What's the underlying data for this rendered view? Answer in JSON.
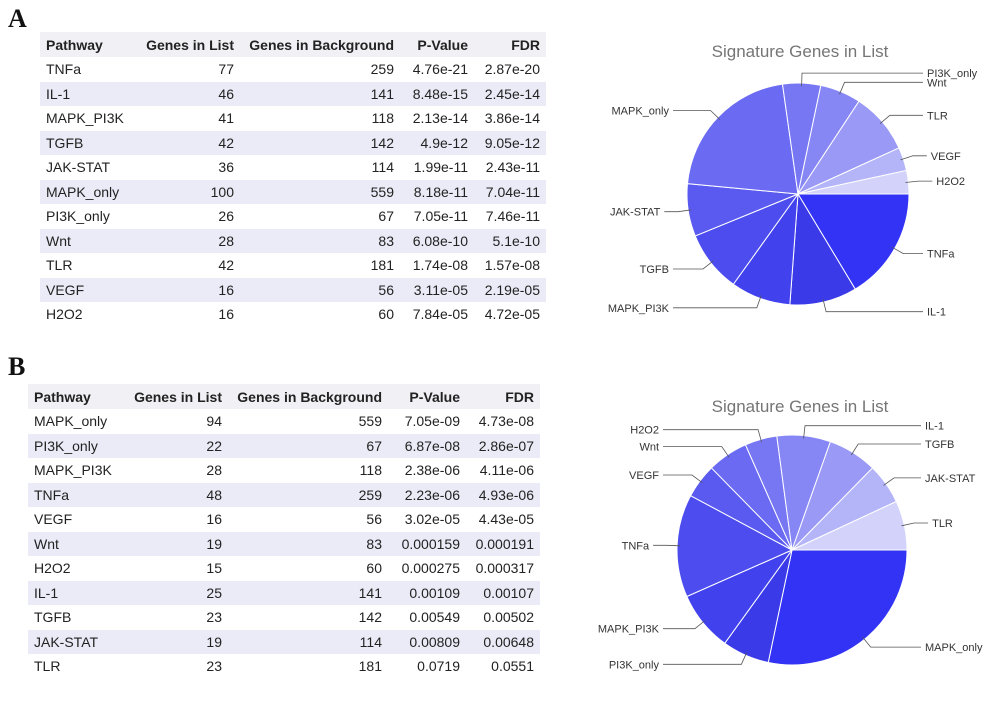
{
  "panels": [
    {
      "letter": "A",
      "table": {
        "columns": [
          "Pathway",
          "Genes in List",
          "Genes in Background",
          "P-Value",
          "FDR"
        ],
        "rows": [
          [
            "TNFa",
            "77",
            "259",
            "4.76e-21",
            "2.87e-20"
          ],
          [
            "IL-1",
            "46",
            "141",
            "8.48e-15",
            "2.45e-14"
          ],
          [
            "MAPK_PI3K",
            "41",
            "118",
            "2.13e-14",
            "3.86e-14"
          ],
          [
            "TGFB",
            "42",
            "142",
            "4.9e-12",
            "9.05e-12"
          ],
          [
            "JAK-STAT",
            "36",
            "114",
            "1.99e-11",
            "2.43e-11"
          ],
          [
            "MAPK_only",
            "100",
            "559",
            "8.18e-11",
            "7.04e-11"
          ],
          [
            "PI3K_only",
            "26",
            "67",
            "7.05e-11",
            "7.46e-11"
          ],
          [
            "Wnt",
            "28",
            "83",
            "6.08e-10",
            "5.1e-10"
          ],
          [
            "TLR",
            "42",
            "181",
            "1.74e-08",
            "1.57e-08"
          ],
          [
            "VEGF",
            "16",
            "56",
            "3.11e-05",
            "2.19e-05"
          ],
          [
            "H2O2",
            "16",
            "60",
            "7.84e-05",
            "4.72e-05"
          ]
        ]
      }
    },
    {
      "letter": "B",
      "table": {
        "columns": [
          "Pathway",
          "Genes in List",
          "Genes in Background",
          "P-Value",
          "FDR"
        ],
        "rows": [
          [
            "MAPK_only",
            "94",
            "559",
            "7.05e-09",
            "4.73e-08"
          ],
          [
            "PI3K_only",
            "22",
            "67",
            "6.87e-08",
            "2.86e-07"
          ],
          [
            "MAPK_PI3K",
            "28",
            "118",
            "2.38e-06",
            "4.11e-06"
          ],
          [
            "TNFa",
            "48",
            "259",
            "2.23e-06",
            "4.93e-06"
          ],
          [
            "VEGF",
            "16",
            "56",
            "3.02e-05",
            "4.43e-05"
          ],
          [
            "Wnt",
            "19",
            "83",
            "0.000159",
            "0.000191"
          ],
          [
            "H2O2",
            "15",
            "60",
            "0.000275",
            "0.000317"
          ],
          [
            "IL-1",
            "25",
            "141",
            "0.00109",
            "0.00107"
          ],
          [
            "TGFB",
            "23",
            "142",
            "0.00549",
            "0.00502"
          ],
          [
            "JAK-STAT",
            "19",
            "114",
            "0.00809",
            "0.00648"
          ],
          [
            "TLR",
            "23",
            "181",
            "0.0719",
            "0.0551"
          ]
        ]
      }
    }
  ],
  "chart_data": [
    {
      "type": "pie",
      "panel": "A",
      "title": "Signature Genes in List",
      "start": "3 o'clock, clockwise",
      "slices": [
        {
          "label": "TNFa",
          "value": 77,
          "color": "#3333f5"
        },
        {
          "label": "IL-1",
          "value": 46,
          "color": "#3a3ae8"
        },
        {
          "label": "MAPK_PI3K",
          "value": 41,
          "color": "#4141ee"
        },
        {
          "label": "TGFB",
          "value": 42,
          "color": "#4c4cef"
        },
        {
          "label": "JAK-STAT",
          "value": 36,
          "color": "#5a5af0"
        },
        {
          "label": "MAPK_only",
          "value": 100,
          "color": "#6a6af2"
        },
        {
          "label": "PI3K_only",
          "value": 26,
          "color": "#7777f3"
        },
        {
          "label": "Wnt",
          "value": 28,
          "color": "#8686f4"
        },
        {
          "label": "TLR",
          "value": 42,
          "color": "#9a9af6"
        },
        {
          "label": "VEGF",
          "value": 16,
          "color": "#b4b4f8"
        },
        {
          "label": "H2O2",
          "value": 16,
          "color": "#d2d2fb"
        }
      ]
    },
    {
      "type": "pie",
      "panel": "B",
      "title": "Signature Genes in List",
      "start": "3 o'clock, clockwise",
      "slices": [
        {
          "label": "MAPK_only",
          "value": 94,
          "color": "#3333f5"
        },
        {
          "label": "PI3K_only",
          "value": 22,
          "color": "#3a3ae8"
        },
        {
          "label": "MAPK_PI3K",
          "value": 28,
          "color": "#4141ee"
        },
        {
          "label": "TNFa",
          "value": 48,
          "color": "#4c4cef"
        },
        {
          "label": "VEGF",
          "value": 16,
          "color": "#5a5af0"
        },
        {
          "label": "Wnt",
          "value": 19,
          "color": "#6a6af2"
        },
        {
          "label": "H2O2",
          "value": 15,
          "color": "#7777f3"
        },
        {
          "label": "IL-1",
          "value": 25,
          "color": "#8686f4"
        },
        {
          "label": "TGFB",
          "value": 23,
          "color": "#9a9af6"
        },
        {
          "label": "JAK-STAT",
          "value": 19,
          "color": "#b4b4f8"
        },
        {
          "label": "TLR",
          "value": 23,
          "color": "#d2d2fb"
        }
      ]
    }
  ]
}
